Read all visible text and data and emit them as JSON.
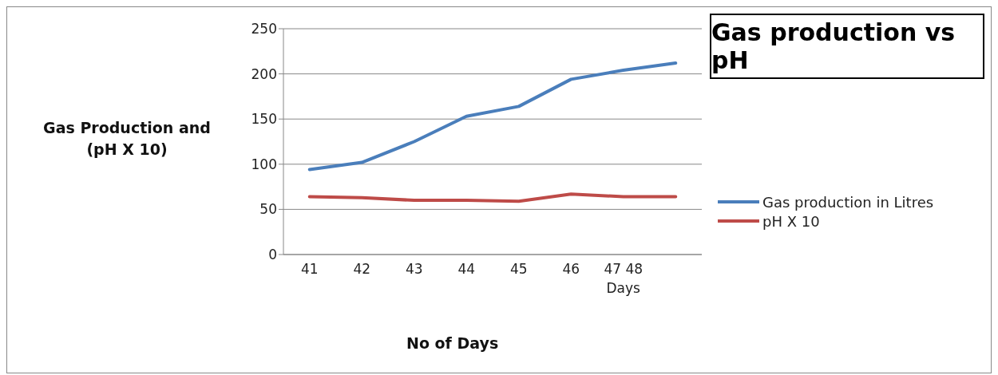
{
  "chart_data": {
    "type": "line",
    "title": "Gas production vs pH",
    "xlabel": "No of Days",
    "ylabel": "Gas Production and (pH X 10)",
    "categories": [
      "41",
      "42",
      "43",
      "44",
      "45",
      "46",
      "47 48 Days",
      null
    ],
    "series": [
      {
        "name": "Gas production in Litres",
        "color": "#4a7ebb",
        "values": [
          94,
          102,
          125,
          153,
          164,
          194,
          204,
          212
        ]
      },
      {
        "name": "pH X 10",
        "color": "#be4b48",
        "values": [
          64,
          63,
          60,
          60,
          59,
          67,
          64,
          64
        ]
      }
    ],
    "ylim": [
      0,
      250
    ],
    "yticks": [
      0,
      50,
      100,
      150,
      200,
      250
    ],
    "grid": "y",
    "legend": "right",
    "marker": "none",
    "line_style": "solid"
  }
}
